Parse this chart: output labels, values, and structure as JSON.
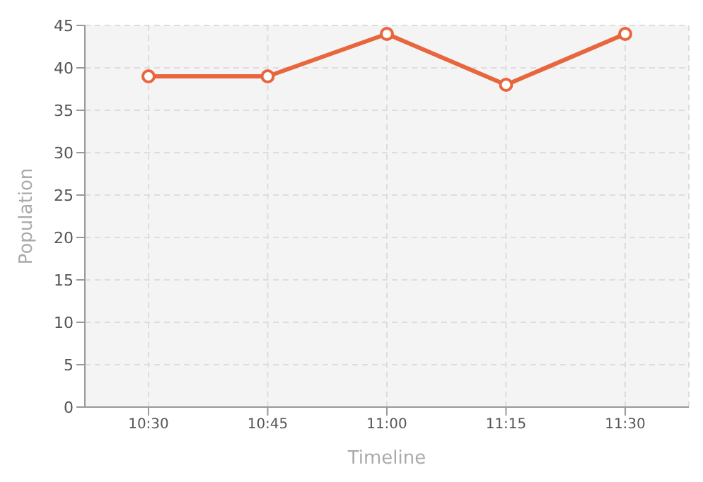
{
  "chart_data": {
    "type": "line",
    "xlabel": "Timeline",
    "ylabel": "Population",
    "categories": [
      "10:30",
      "10:45",
      "11:00",
      "11:15",
      "11:30"
    ],
    "series": [
      {
        "color": "#e8663d",
        "values": [
          39,
          39,
          44,
          38,
          44
        ]
      }
    ],
    "ylim": [
      0,
      45
    ],
    "yticks": [
      0,
      5,
      10,
      15,
      20,
      25,
      30,
      35,
      40,
      45
    ],
    "grid": true,
    "marker": "circle",
    "line_style": "solid"
  }
}
